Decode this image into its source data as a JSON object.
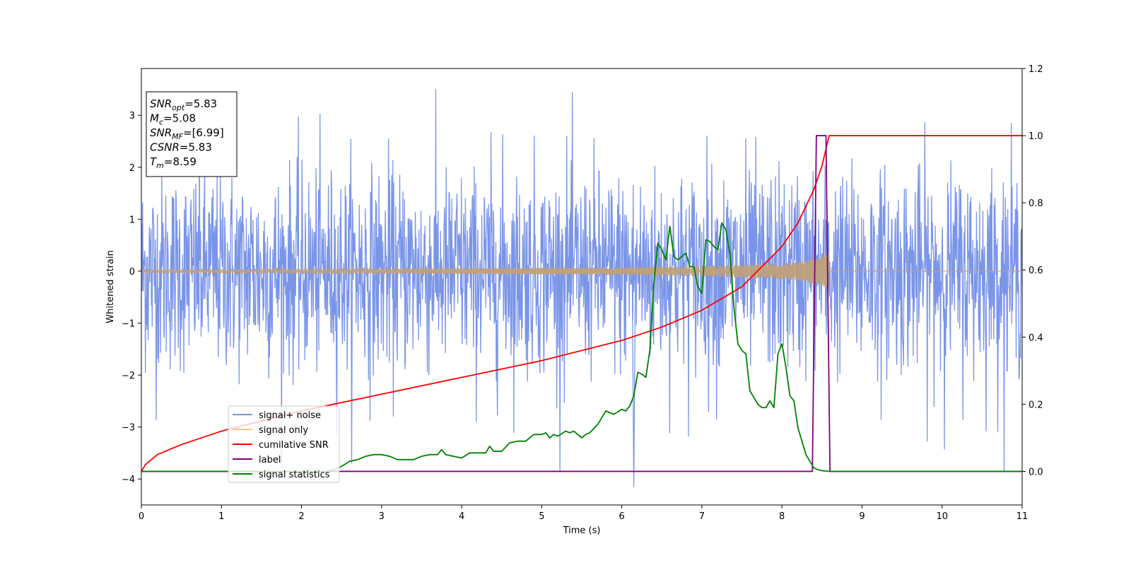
{
  "chart_data": {
    "type": "line",
    "xlabel": "Time (s)",
    "ylabel": "Whitened strain",
    "xlim": [
      0,
      11
    ],
    "ylim": [
      -4.5,
      3.9
    ],
    "y2lim": [
      -0.1,
      1.2
    ],
    "xticks": [
      0,
      1,
      2,
      3,
      4,
      5,
      6,
      7,
      8,
      9,
      10,
      11
    ],
    "yticks": [
      -4,
      -3,
      -2,
      -1,
      0,
      1,
      2,
      3
    ],
    "y2ticks": [
      "0.0",
      "0.2",
      "0.4",
      "0.6",
      "0.8",
      "1.0",
      "1.2"
    ],
    "y2tick_values": [
      0.0,
      0.2,
      0.4,
      0.6,
      0.8,
      1.0,
      1.2
    ],
    "grid": false,
    "legend_position": "lower-left",
    "annotation_box": {
      "position": "top-left",
      "lines": [
        {
          "base": "SNR",
          "sub": "opt",
          "rest": "=5.83"
        },
        {
          "base": "M",
          "sub": "c",
          "rest": "=5.08"
        },
        {
          "base": "SNR",
          "sub": "MF",
          "rest": "=[6.99]"
        },
        {
          "base": "CSNR",
          "sub": "",
          "rest": "=5.83"
        },
        {
          "base": "T",
          "sub": "m",
          "rest": "=8.59"
        }
      ]
    },
    "series": [
      {
        "name": "signal+ noise",
        "axis": "left",
        "color": "#7a95e8",
        "kind": "noise",
        "sigma": 0.95,
        "time_range": [
          0,
          11
        ],
        "samples": 2200,
        "min_value": -4.15,
        "max_value": 3.5
      },
      {
        "name": "signal only",
        "axis": "left",
        "color": "#c0a07a",
        "kind": "chirp",
        "envelope": {
          "x": [
            0,
            2,
            4,
            5,
            6,
            7,
            8,
            8.3,
            8.5,
            8.59
          ],
          "amp": [
            0.03,
            0.04,
            0.05,
            0.06,
            0.07,
            0.1,
            0.15,
            0.2,
            0.28,
            0.38
          ]
        },
        "merger_time": 8.59
      },
      {
        "name": "cumilative SNR",
        "axis": "right",
        "color": "#ff0000",
        "x": [
          0,
          0.05,
          0.2,
          0.5,
          1,
          2,
          3,
          4,
          5,
          6,
          6.5,
          7,
          7.5,
          8,
          8.2,
          8.4,
          8.5,
          8.59,
          8.6,
          11
        ],
        "values": [
          0.0,
          0.02,
          0.05,
          0.08,
          0.12,
          0.18,
          0.23,
          0.28,
          0.33,
          0.39,
          0.43,
          0.48,
          0.55,
          0.67,
          0.74,
          0.84,
          0.91,
          1.0,
          1.0,
          1.0
        ]
      },
      {
        "name": "label",
        "axis": "right",
        "color": "#800080",
        "x": [
          0,
          8.38,
          8.43,
          8.55,
          8.6,
          11
        ],
        "values": [
          0.0,
          0.0,
          1.0,
          1.0,
          0.0,
          0.0
        ]
      },
      {
        "name": "signal statistics",
        "axis": "right",
        "color": "#008000",
        "x": [
          0,
          2.3,
          2.4,
          2.5,
          2.6,
          2.7,
          2.8,
          2.9,
          3.0,
          3.1,
          3.2,
          3.3,
          3.4,
          3.5,
          3.6,
          3.7,
          3.75,
          3.8,
          3.9,
          4.0,
          4.1,
          4.2,
          4.3,
          4.35,
          4.4,
          4.5,
          4.6,
          4.7,
          4.8,
          4.9,
          5.0,
          5.05,
          5.1,
          5.15,
          5.2,
          5.3,
          5.35,
          5.4,
          5.5,
          5.55,
          5.6,
          5.7,
          5.8,
          5.9,
          6.0,
          6.05,
          6.1,
          6.15,
          6.2,
          6.25,
          6.3,
          6.35,
          6.4,
          6.45,
          6.5,
          6.55,
          6.6,
          6.65,
          6.7,
          6.75,
          6.8,
          6.85,
          6.9,
          6.95,
          7.0,
          7.05,
          7.1,
          7.15,
          7.2,
          7.25,
          7.3,
          7.35,
          7.4,
          7.45,
          7.5,
          7.55,
          7.6,
          7.65,
          7.7,
          7.75,
          7.8,
          7.85,
          7.9,
          7.95,
          8.0,
          8.05,
          8.1,
          8.15,
          8.2,
          8.25,
          8.3,
          8.35,
          8.4,
          8.45,
          8.5,
          8.55,
          8.6,
          8.7,
          8.8,
          9.0,
          9.2,
          11
        ],
        "values": [
          0.0,
          0.0,
          0.005,
          0.015,
          0.03,
          0.035,
          0.045,
          0.05,
          0.05,
          0.045,
          0.035,
          0.035,
          0.035,
          0.045,
          0.05,
          0.05,
          0.065,
          0.05,
          0.045,
          0.04,
          0.055,
          0.055,
          0.055,
          0.075,
          0.06,
          0.06,
          0.085,
          0.09,
          0.09,
          0.11,
          0.11,
          0.115,
          0.1,
          0.11,
          0.105,
          0.12,
          0.115,
          0.12,
          0.1,
          0.11,
          0.115,
          0.14,
          0.18,
          0.17,
          0.185,
          0.18,
          0.195,
          0.225,
          0.295,
          0.29,
          0.28,
          0.36,
          0.56,
          0.68,
          0.66,
          0.63,
          0.73,
          0.64,
          0.63,
          0.64,
          0.65,
          0.61,
          0.61,
          0.55,
          0.53,
          0.69,
          0.685,
          0.67,
          0.66,
          0.74,
          0.72,
          0.65,
          0.49,
          0.38,
          0.36,
          0.35,
          0.24,
          0.22,
          0.2,
          0.19,
          0.19,
          0.21,
          0.19,
          0.35,
          0.38,
          0.31,
          0.225,
          0.21,
          0.13,
          0.09,
          0.05,
          0.03,
          0.01,
          0.005,
          0.002,
          0.001,
          0.0,
          0.0,
          0.0,
          0.0,
          0.0,
          0.0
        ]
      }
    ]
  }
}
